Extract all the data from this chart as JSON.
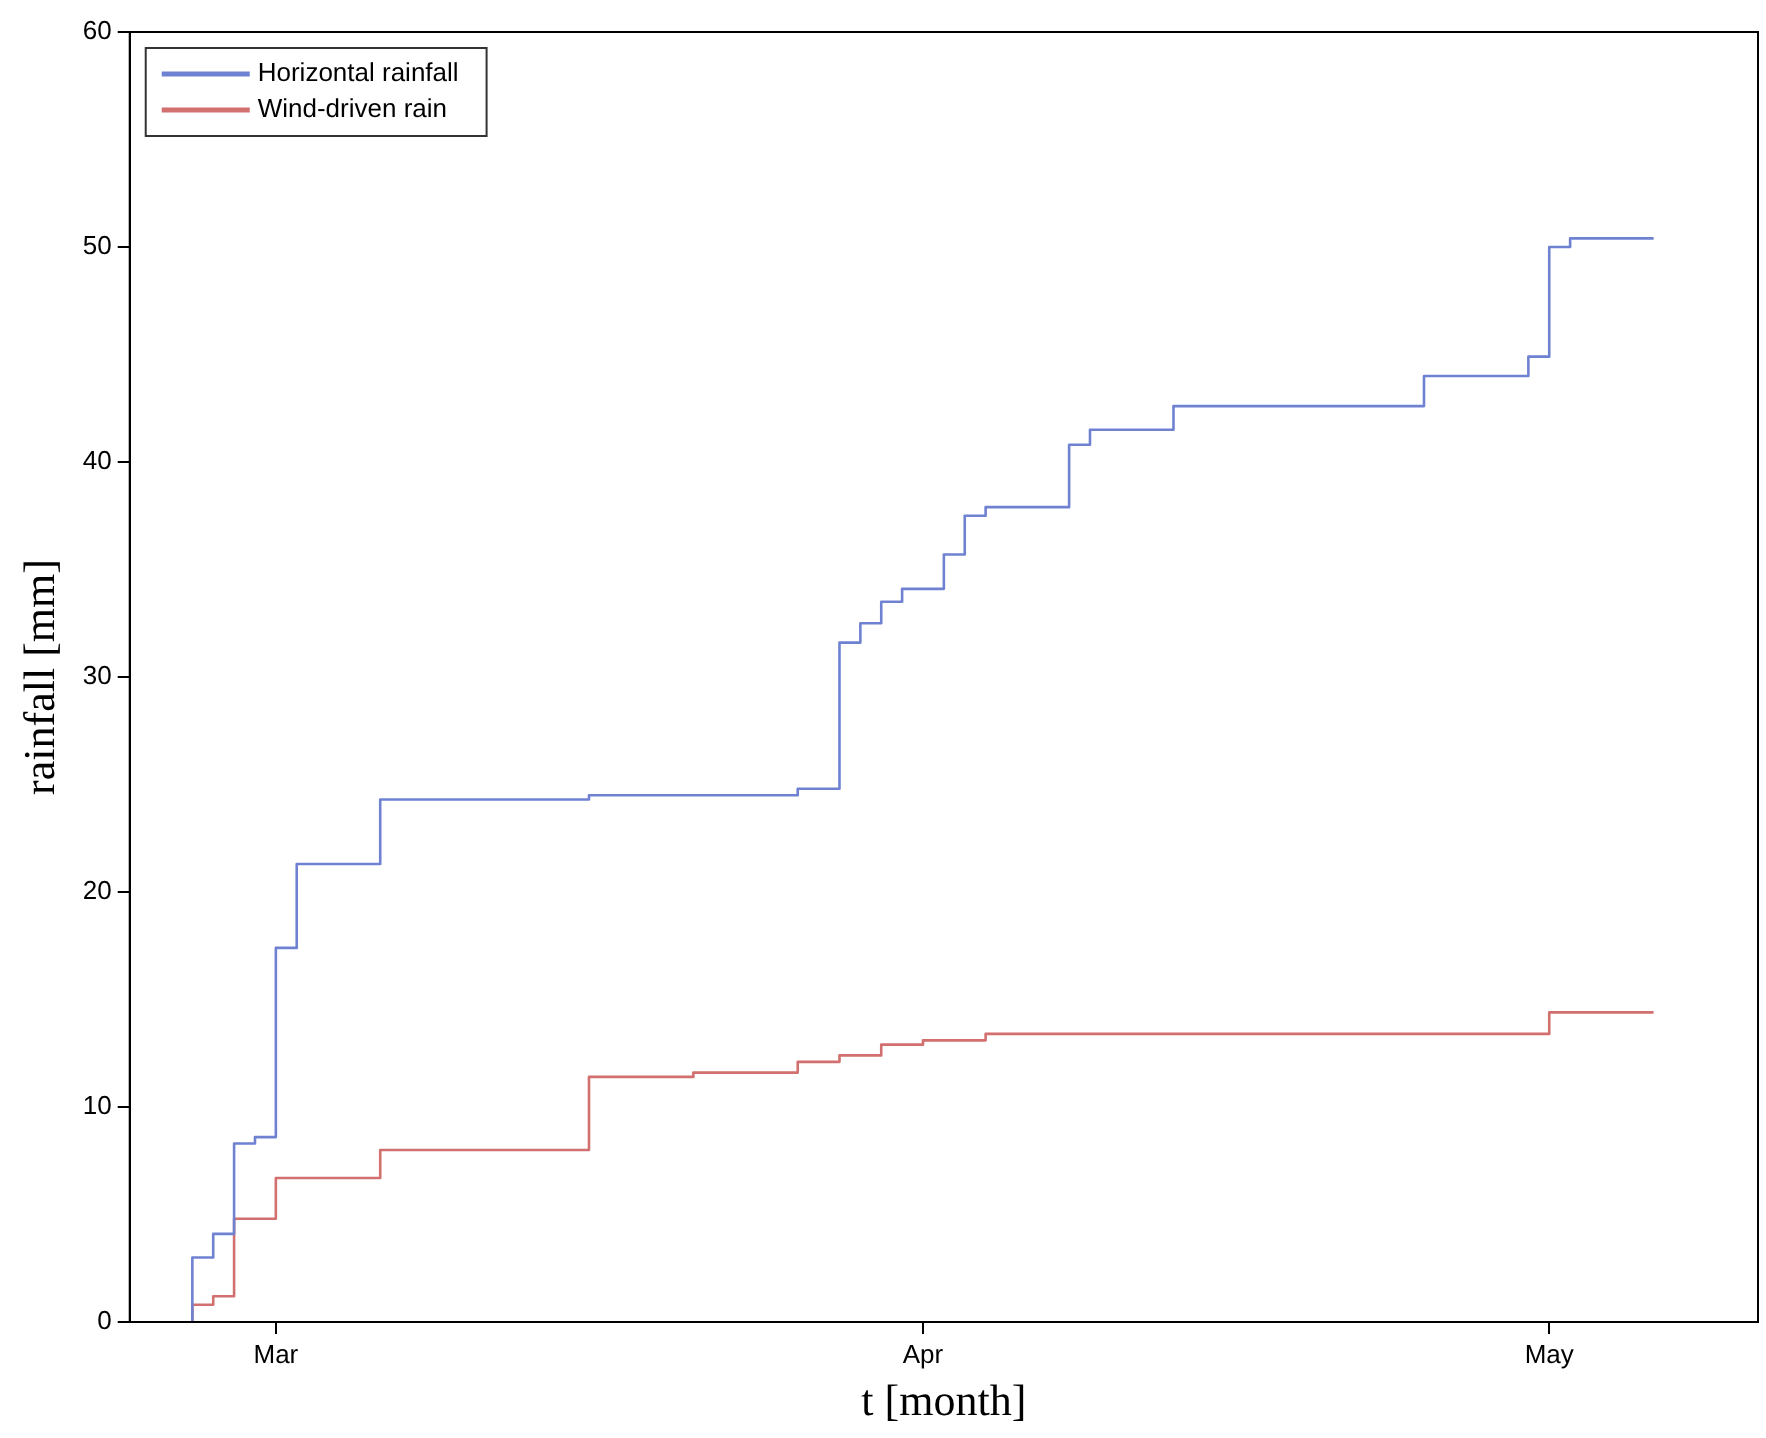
{
  "chart_data": {
    "type": "step",
    "xlabel": "t [month]",
    "ylabel": "rainfall [mm]",
    "xlim": [
      "--02-22",
      "--05-11"
    ],
    "xticks": [
      {
        "value": "--03-01",
        "label": "Mar"
      },
      {
        "value": "--04-01",
        "label": "Apr"
      },
      {
        "value": "--05-01",
        "label": "May"
      }
    ],
    "ylim": [
      0,
      60
    ],
    "yticks": [
      0,
      10,
      20,
      30,
      40,
      50,
      60
    ],
    "grid": false,
    "legend": "top left",
    "marker": "none",
    "line_style": "solid",
    "series": [
      {
        "name": "Horizontal rainfall",
        "color": "#6f82d2",
        "x": [
          "--02-25",
          "--02-26",
          "--02-27",
          "--02-28",
          "--03-01",
          "--03-02",
          "--03-06",
          "--03-16",
          "--03-26",
          "--03-28",
          "--03-29",
          "--03-30",
          "--03-31",
          "--04-02",
          "--04-03",
          "--04-04",
          "--04-08",
          "--04-09",
          "--04-13",
          "--04-25",
          "--04-30",
          "--05-01",
          "--05-02",
          "--05-03",
          "--05-06"
        ],
        "values": [
          0,
          3,
          4.1,
          8.3,
          8.6,
          17.4,
          21.3,
          24.3,
          24.5,
          24.8,
          31.6,
          32.5,
          33.5,
          34.1,
          35.7,
          37.5,
          37.9,
          40.8,
          41.5,
          42.6,
          44,
          44.9,
          50,
          50.4,
          50.4
        ]
      },
      {
        "name": "Wind-driven rain",
        "color": "#d26f6f",
        "x": [
          "--02-25",
          "--02-26",
          "--02-27",
          "--03-01",
          "--03-06",
          "--03-16",
          "--03-21",
          "--03-26",
          "--03-28",
          "--03-30",
          "--04-01",
          "--04-04",
          "--05-01",
          "--05-02",
          "--05-06"
        ],
        "values": [
          0,
          0.8,
          1.2,
          4.8,
          6.7,
          8,
          11.4,
          11.6,
          12.1,
          12.4,
          12.9,
          13.1,
          13.4,
          14.4,
          14.4
        ]
      }
    ]
  }
}
